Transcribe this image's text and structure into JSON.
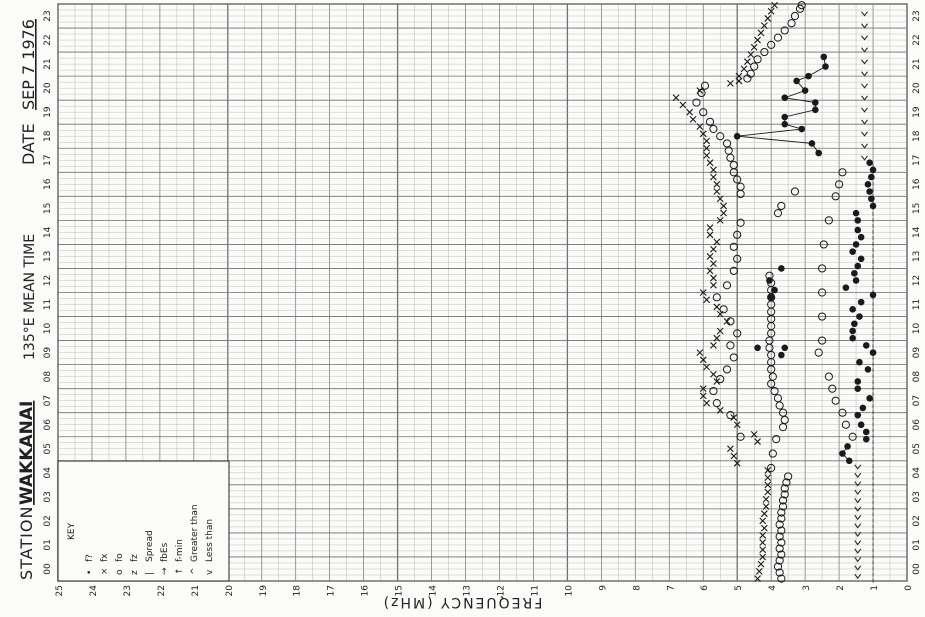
{
  "header": {
    "station_label": "STATION",
    "station_name": "WAKKANAI",
    "time_label": "135°E MEAN TIME",
    "date_label": "DATE",
    "date_value": "SEP  7 1976"
  },
  "key": {
    "title": "KEY",
    "items": [
      {
        "symbol": "•",
        "label": "f?"
      },
      {
        "symbol": "×",
        "label": "fx"
      },
      {
        "symbol": "o",
        "label": "fo"
      },
      {
        "symbol": "z",
        "label": "fz"
      },
      {
        "symbol": "|",
        "label": "Spread"
      },
      {
        "symbol": "→",
        "label": "fbEs"
      },
      {
        "symbol": "↑",
        "label": "f-min"
      },
      {
        "symbol": "^",
        "label": "Greater  than"
      },
      {
        "symbol": "v",
        "label": "Less  than"
      }
    ]
  },
  "colors": {
    "ink": "#1a1a1a",
    "grid": "#6f6f6f",
    "grid_minor": "#a8a8a8",
    "paper": "#fbfbf9"
  },
  "chart_data": {
    "type": "scatter",
    "ylabel": "FREQUENCY (MHz)",
    "x_ticks": [
      "25",
      "24",
      "23",
      "22",
      "21",
      "20",
      "19",
      "18",
      "17",
      "16",
      "15",
      "14",
      "13",
      "12",
      "11",
      "10",
      "9",
      "8",
      "7",
      "6",
      "5",
      "4",
      "3",
      "2",
      "1",
      "0"
    ],
    "time_ticks": [
      "00",
      "01",
      "02",
      "03",
      "04",
      "05",
      "06",
      "07",
      "08",
      "09",
      "10",
      "11",
      "12",
      "13",
      "14",
      "15",
      "16",
      "17",
      "18",
      "19",
      "20",
      "21",
      "22",
      "23"
    ],
    "time_range": [
      0,
      24
    ],
    "freq_range": [
      0,
      25
    ],
    "series": [
      {
        "name": "fo",
        "marker": "circle",
        "points": [
          [
            0.1,
            3.7
          ],
          [
            0.35,
            3.75
          ],
          [
            0.6,
            3.8
          ],
          [
            0.85,
            3.75
          ],
          [
            1.1,
            3.7
          ],
          [
            1.35,
            3.75
          ],
          [
            1.6,
            3.7
          ],
          [
            1.85,
            3.75
          ],
          [
            2.1,
            3.7
          ],
          [
            2.35,
            3.75
          ],
          [
            2.6,
            3.7
          ],
          [
            2.85,
            3.7
          ],
          [
            3.1,
            3.65
          ],
          [
            3.35,
            3.65
          ],
          [
            3.6,
            3.6
          ],
          [
            3.85,
            3.6
          ],
          [
            4.1,
            3.55
          ],
          [
            4.35,
            3.5
          ],
          [
            4.7,
            4.0
          ],
          [
            5.3,
            3.95
          ],
          [
            5.9,
            3.85
          ],
          [
            6.4,
            3.65
          ],
          [
            6.7,
            3.6
          ],
          [
            7.0,
            3.65
          ],
          [
            7.3,
            3.75
          ],
          [
            7.6,
            3.8
          ],
          [
            7.9,
            3.9
          ],
          [
            8.2,
            4.0
          ],
          [
            8.5,
            3.95
          ],
          [
            8.8,
            4.0
          ],
          [
            9.1,
            4.0
          ],
          [
            9.4,
            4.0
          ],
          [
            9.7,
            4.05
          ],
          [
            10.0,
            4.05
          ],
          [
            10.3,
            4.0
          ],
          [
            10.6,
            4.0
          ],
          [
            10.9,
            4.0
          ],
          [
            11.2,
            4.0
          ],
          [
            11.5,
            4.0
          ],
          [
            11.8,
            4.0
          ],
          [
            12.1,
            4.0
          ],
          [
            12.4,
            4.0
          ],
          [
            12.7,
            4.05
          ],
          [
            6.0,
            4.9
          ],
          [
            6.9,
            5.2
          ],
          [
            7.4,
            5.6
          ],
          [
            7.9,
            5.7
          ],
          [
            8.4,
            5.5
          ],
          [
            8.8,
            5.3
          ],
          [
            9.3,
            5.1
          ],
          [
            9.8,
            5.2
          ],
          [
            10.3,
            5.0
          ],
          [
            10.8,
            5.2
          ],
          [
            11.3,
            5.4
          ],
          [
            11.8,
            5.6
          ],
          [
            12.3,
            5.3
          ],
          [
            12.9,
            5.1
          ],
          [
            13.4,
            5.0
          ],
          [
            13.9,
            5.1
          ],
          [
            14.4,
            5.0
          ],
          [
            14.9,
            4.9
          ],
          [
            15.3,
            3.8
          ],
          [
            15.6,
            3.7
          ],
          [
            16.2,
            3.3
          ],
          [
            16.1,
            4.9
          ],
          [
            16.4,
            4.9
          ],
          [
            16.7,
            5.0
          ],
          [
            17.0,
            5.1
          ],
          [
            17.3,
            5.1
          ],
          [
            17.6,
            5.2
          ],
          [
            17.9,
            5.25
          ],
          [
            18.2,
            5.3
          ],
          [
            18.5,
            5.5
          ],
          [
            18.8,
            5.7
          ],
          [
            19.1,
            5.8
          ],
          [
            19.5,
            6.0
          ],
          [
            19.9,
            6.2
          ],
          [
            20.3,
            6.05
          ],
          [
            20.6,
            5.95
          ],
          [
            20.9,
            4.7
          ],
          [
            21.1,
            4.6
          ],
          [
            21.4,
            4.5
          ],
          [
            21.7,
            4.4
          ],
          [
            22.0,
            4.2
          ],
          [
            22.3,
            4.0
          ],
          [
            22.6,
            3.8
          ],
          [
            22.9,
            3.6
          ],
          [
            23.2,
            3.4
          ],
          [
            23.5,
            3.3
          ],
          [
            23.8,
            3.15
          ],
          [
            23.95,
            3.1
          ]
        ]
      },
      {
        "name": "fx",
        "marker": "cross",
        "points": [
          [
            0.1,
            4.4
          ],
          [
            0.4,
            4.35
          ],
          [
            0.7,
            4.3
          ],
          [
            1.0,
            4.25
          ],
          [
            1.3,
            4.25
          ],
          [
            1.6,
            4.25
          ],
          [
            1.9,
            4.25
          ],
          [
            2.2,
            4.2
          ],
          [
            2.5,
            4.25
          ],
          [
            2.8,
            4.2
          ],
          [
            3.1,
            4.15
          ],
          [
            3.4,
            4.15
          ],
          [
            3.7,
            4.1
          ],
          [
            4.0,
            4.1
          ],
          [
            4.3,
            4.1
          ],
          [
            4.6,
            4.1
          ],
          [
            4.9,
            5.0
          ],
          [
            5.2,
            5.1
          ],
          [
            5.5,
            5.2
          ],
          [
            5.8,
            4.4
          ],
          [
            6.1,
            4.5
          ],
          [
            6.5,
            5.0
          ],
          [
            6.8,
            5.1
          ],
          [
            7.1,
            5.5
          ],
          [
            7.4,
            5.9
          ],
          [
            7.7,
            6.0
          ],
          [
            8.0,
            6.0
          ],
          [
            8.3,
            5.6
          ],
          [
            8.6,
            5.7
          ],
          [
            8.9,
            5.9
          ],
          [
            9.2,
            6.0
          ],
          [
            9.5,
            6.1
          ],
          [
            9.8,
            5.7
          ],
          [
            10.1,
            5.6
          ],
          [
            10.4,
            5.5
          ],
          [
            10.8,
            5.3
          ],
          [
            11.1,
            5.5
          ],
          [
            11.4,
            5.6
          ],
          [
            11.7,
            5.9
          ],
          [
            12.0,
            6.0
          ],
          [
            12.3,
            5.7
          ],
          [
            12.6,
            5.7
          ],
          [
            12.9,
            5.8
          ],
          [
            13.2,
            5.7
          ],
          [
            13.5,
            5.8
          ],
          [
            13.8,
            5.7
          ],
          [
            14.1,
            5.6
          ],
          [
            14.4,
            5.8
          ],
          [
            14.7,
            5.8
          ],
          [
            15.0,
            5.5
          ],
          [
            15.3,
            5.4
          ],
          [
            15.6,
            5.4
          ],
          [
            15.9,
            5.5
          ],
          [
            16.2,
            5.6
          ],
          [
            16.5,
            5.6
          ],
          [
            16.8,
            5.7
          ],
          [
            17.1,
            5.7
          ],
          [
            17.4,
            5.8
          ],
          [
            17.7,
            5.9
          ],
          [
            18.0,
            5.9
          ],
          [
            18.3,
            5.9
          ],
          [
            18.6,
            6.0
          ],
          [
            18.9,
            6.1
          ],
          [
            19.2,
            6.3
          ],
          [
            19.5,
            6.4
          ],
          [
            19.8,
            6.6
          ],
          [
            20.1,
            6.8
          ],
          [
            20.4,
            6.1
          ],
          [
            20.7,
            5.2
          ],
          [
            20.8,
            4.95
          ],
          [
            21.0,
            4.95
          ],
          [
            21.3,
            4.8
          ],
          [
            21.6,
            4.7
          ],
          [
            21.9,
            4.6
          ],
          [
            22.2,
            4.5
          ],
          [
            22.5,
            4.4
          ],
          [
            22.8,
            4.3
          ],
          [
            23.1,
            4.2
          ],
          [
            23.4,
            4.1
          ],
          [
            23.7,
            4.0
          ],
          [
            23.95,
            3.9
          ]
        ]
      },
      {
        "name": "f?",
        "marker": "filled",
        "points": [
          [
            5.0,
            1.7
          ],
          [
            5.3,
            1.9
          ],
          [
            5.6,
            1.75
          ],
          [
            5.9,
            1.2
          ],
          [
            6.2,
            1.2
          ],
          [
            6.5,
            1.35
          ],
          [
            6.9,
            1.45
          ],
          [
            7.2,
            1.3
          ],
          [
            7.6,
            1.1
          ],
          [
            8.0,
            1.45
          ],
          [
            8.3,
            1.45
          ],
          [
            8.8,
            1.15
          ],
          [
            9.1,
            1.4
          ],
          [
            9.5,
            1.0
          ],
          [
            9.8,
            1.2
          ],
          [
            10.1,
            1.6
          ],
          [
            10.4,
            1.6
          ],
          [
            10.7,
            1.55
          ],
          [
            11.0,
            1.4
          ],
          [
            11.3,
            1.6
          ],
          [
            11.6,
            1.35
          ],
          [
            11.9,
            1.0
          ],
          [
            12.2,
            1.8
          ],
          [
            12.5,
            1.5
          ],
          [
            12.8,
            1.55
          ],
          [
            13.1,
            1.45
          ],
          [
            13.4,
            1.35
          ],
          [
            13.7,
            1.6
          ],
          [
            14.0,
            1.5
          ],
          [
            14.3,
            1.35
          ],
          [
            14.6,
            1.45
          ],
          [
            15.0,
            1.45
          ],
          [
            15.3,
            1.5
          ],
          [
            15.6,
            1.0
          ],
          [
            15.9,
            1.05
          ],
          [
            16.2,
            1.1
          ],
          [
            16.5,
            1.15
          ],
          [
            16.8,
            1.05
          ],
          [
            17.1,
            1.0
          ],
          [
            17.4,
            1.1
          ],
          [
            9.7,
            3.6
          ],
          [
            9.4,
            3.7
          ],
          [
            9.7,
            4.4
          ],
          [
            11.8,
            4.0
          ],
          [
            12.1,
            3.9
          ],
          [
            12.5,
            4.05
          ],
          [
            13.0,
            3.7
          ],
          [
            17.8,
            2.6
          ],
          [
            18.2,
            2.8
          ],
          [
            18.5,
            5.0
          ],
          [
            18.8,
            3.1
          ],
          [
            19.0,
            3.6
          ],
          [
            19.3,
            3.6
          ],
          [
            19.6,
            2.7
          ],
          [
            19.9,
            2.7
          ],
          [
            20.1,
            3.6
          ],
          [
            20.4,
            3.0
          ],
          [
            20.8,
            3.25
          ],
          [
            21.0,
            2.9
          ],
          [
            21.4,
            2.4
          ],
          [
            21.8,
            2.45
          ]
        ]
      }
    ],
    "connected": [
      [
        [
          5.0,
          1.7
        ],
        [
          5.3,
          1.9
        ],
        [
          5.6,
          1.75
        ]
      ],
      [
        [
          17.8,
          2.6
        ],
        [
          18.2,
          2.8
        ],
        [
          18.5,
          5.0
        ],
        [
          18.8,
          3.1
        ],
        [
          19.0,
          3.6
        ],
        [
          19.3,
          3.6
        ],
        [
          19.6,
          2.7
        ],
        [
          19.9,
          2.7
        ],
        [
          20.1,
          3.6
        ],
        [
          20.4,
          3.0
        ],
        [
          20.8,
          3.25
        ],
        [
          21.0,
          2.9
        ],
        [
          21.4,
          2.4
        ],
        [
          21.8,
          2.45
        ]
      ]
    ],
    "small_o": [
      [
        9.5,
        2.6
      ],
      [
        10.0,
        2.5
      ],
      [
        11.0,
        2.5
      ],
      [
        12.0,
        2.5
      ],
      [
        13.0,
        2.5
      ],
      [
        14.0,
        2.45
      ],
      [
        15.0,
        2.3
      ],
      [
        16.0,
        2.1
      ],
      [
        16.5,
        2.0
      ],
      [
        17.0,
        1.9
      ],
      [
        8.5,
        2.3
      ],
      [
        8.0,
        2.2
      ],
      [
        7.5,
        2.1
      ],
      [
        7.0,
        1.9
      ],
      [
        6.5,
        1.8
      ],
      [
        6.0,
        1.6
      ]
    ]
  }
}
